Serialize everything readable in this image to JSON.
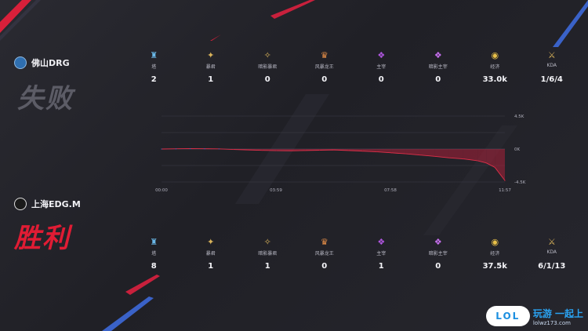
{
  "teams": [
    {
      "name": "佛山DRG",
      "result": "失败",
      "logo_color": "#2f6fb0",
      "stats": [
        {
          "icon": "tower-icon",
          "glyph": "♜",
          "color": "#6ab8e8",
          "label": "塔",
          "value": "2"
        },
        {
          "icon": "drake-icon",
          "glyph": "✦",
          "color": "#d9b35a",
          "label": "暴君",
          "value": "1"
        },
        {
          "icon": "shadow-drake-icon",
          "glyph": "✧",
          "color": "#d9b35a",
          "label": "暗影暴君",
          "value": "0"
        },
        {
          "icon": "storm-dragon-icon",
          "glyph": "♛",
          "color": "#e89048",
          "label": "风暴龙王",
          "value": "0"
        },
        {
          "icon": "overlord-icon",
          "glyph": "❖",
          "color": "#b056e0",
          "label": "主宰",
          "value": "0"
        },
        {
          "icon": "shadow-overlord-icon",
          "glyph": "❖",
          "color": "#c870f0",
          "label": "暗影主宰",
          "value": "0"
        },
        {
          "icon": "gold-icon",
          "glyph": "◉",
          "color": "#e8c048",
          "label": "经济",
          "value": "33.0k"
        },
        {
          "icon": "sword-icon",
          "glyph": "⚔",
          "color": "#d9b35a",
          "label": "KDA",
          "value": "1/6/4"
        }
      ]
    },
    {
      "name": "上海EDG.M",
      "result": "胜利",
      "logo_color": "#dddddd",
      "stats": [
        {
          "icon": "tower-icon",
          "glyph": "♜",
          "color": "#6ab8e8",
          "label": "塔",
          "value": "8"
        },
        {
          "icon": "drake-icon",
          "glyph": "✦",
          "color": "#d9b35a",
          "label": "暴君",
          "value": "1"
        },
        {
          "icon": "shadow-drake-icon",
          "glyph": "✧",
          "color": "#d9b35a",
          "label": "暗影暴君",
          "value": "1"
        },
        {
          "icon": "storm-dragon-icon",
          "glyph": "♛",
          "color": "#e89048",
          "label": "风暴龙王",
          "value": "0"
        },
        {
          "icon": "overlord-icon",
          "glyph": "❖",
          "color": "#b056e0",
          "label": "主宰",
          "value": "1"
        },
        {
          "icon": "shadow-overlord-icon",
          "glyph": "❖",
          "color": "#c870f0",
          "label": "暗影主宰",
          "value": "0"
        },
        {
          "icon": "gold-icon",
          "glyph": "◉",
          "color": "#e8c048",
          "label": "经济",
          "value": "37.5k"
        },
        {
          "icon": "sword-icon",
          "glyph": "⚔",
          "color": "#d9b35a",
          "label": "KDA",
          "value": "6/1/13"
        }
      ]
    }
  ],
  "chart_data": {
    "type": "area",
    "x_ticks": [
      "00:00",
      "03:59",
      "07:58",
      "11:57"
    ],
    "y_ticks": [
      "4.5K",
      "0K",
      "-4.5K"
    ],
    "ylim": [
      -4500,
      4500
    ],
    "x_minutes": [
      0,
      0.5,
      1,
      1.5,
      2,
      2.5,
      3,
      3.5,
      4,
      4.5,
      5,
      5.5,
      6,
      6.5,
      7,
      7.5,
      8,
      8.5,
      9,
      9.5,
      10,
      10.5,
      11,
      11.3,
      11.6,
      11.95
    ],
    "values": [
      0,
      30,
      60,
      40,
      20,
      -60,
      -120,
      -180,
      -220,
      -240,
      -200,
      -160,
      -120,
      -200,
      -280,
      -380,
      -520,
      -650,
      -820,
      -1000,
      -1200,
      -1350,
      -1600,
      -1900,
      -2500,
      -4300
    ],
    "positive_color": "#3a62c8",
    "negative_color": "#c8203c"
  },
  "watermark": {
    "badge": "LOL",
    "brand": "玩游 一起上",
    "url": "lolwz173.com"
  }
}
